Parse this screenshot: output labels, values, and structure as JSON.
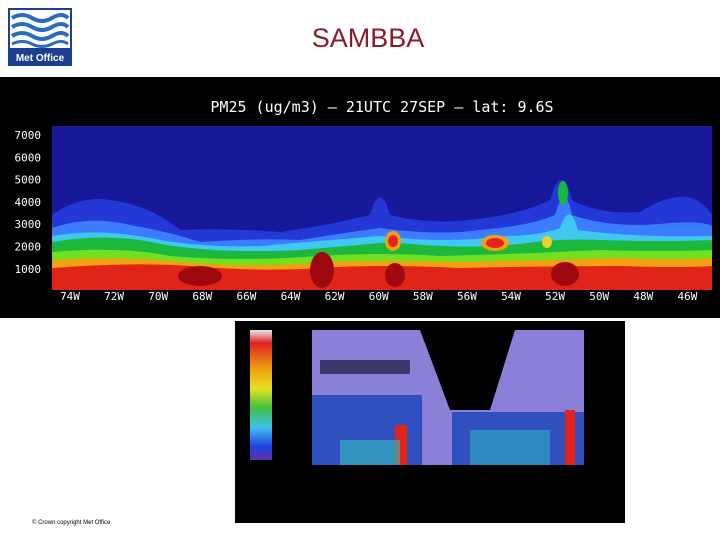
{
  "header": {
    "logo_text": "Met Office",
    "title": "SAMBBA"
  },
  "figure_top": {
    "title": "PM25 (ug/m3) — 21UTC 27SEP — lat: 9.6S",
    "y_labels": [
      "7000",
      "6000",
      "5000",
      "4000",
      "3000",
      "2000",
      "1000"
    ],
    "x_labels": [
      "74W",
      "72W",
      "70W",
      "68W",
      "66W",
      "64W",
      "62W",
      "60W",
      "58W",
      "56W",
      "54W",
      "52W",
      "50W",
      "48W",
      "46W"
    ]
  },
  "footer": {
    "copyright": "© Crown copyright Met Office"
  }
}
